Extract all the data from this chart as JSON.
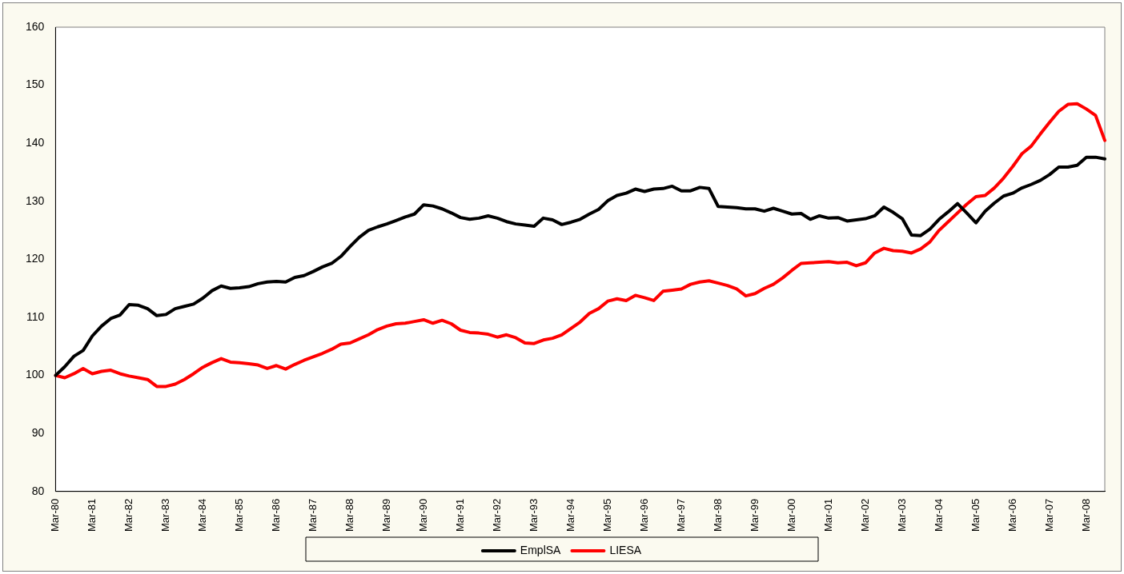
{
  "chart_data": {
    "type": "line",
    "categories": [
      "Mar-80",
      null,
      null,
      null,
      "Mar-81",
      null,
      null,
      null,
      "Mar-82",
      null,
      null,
      null,
      "Mar-83",
      null,
      null,
      null,
      "Mar-84",
      null,
      null,
      null,
      "Mar-85",
      null,
      null,
      null,
      "Mar-86",
      null,
      null,
      null,
      "Mar-87",
      null,
      null,
      null,
      "Mar-88",
      null,
      null,
      null,
      "Mar-89",
      null,
      null,
      null,
      "Mar-90",
      null,
      null,
      null,
      "Mar-91",
      null,
      null,
      null,
      "Mar-92",
      null,
      null,
      null,
      "Mar-93",
      null,
      null,
      null,
      "Mar-94",
      null,
      null,
      null,
      "Mar-95",
      null,
      null,
      null,
      "Mar-96",
      null,
      null,
      null,
      "Mar-97",
      null,
      null,
      null,
      "Mar-98",
      null,
      null,
      null,
      "Mar-99",
      null,
      null,
      null,
      "Mar-00",
      null,
      null,
      null,
      "Mar-01",
      null,
      null,
      null,
      "Mar-02",
      null,
      null,
      null,
      "Mar-03",
      null,
      null,
      null,
      "Mar-04",
      null,
      null,
      null,
      "Mar-05",
      null,
      null,
      null,
      "Mar-06",
      null,
      null,
      null,
      "Mar-07",
      null,
      null,
      null,
      "Mar-08",
      null,
      null
    ],
    "series": [
      {
        "name": "EmplSA",
        "color": "#000000",
        "values": [
          100,
          101.5,
          103.3,
          104.3,
          106.8,
          108.5,
          109.8,
          110.4,
          112.2,
          112.1,
          111.5,
          110.3,
          110.5,
          111.5,
          111.9,
          112.3,
          113.3,
          114.6,
          115.4,
          115,
          115.1,
          115.3,
          115.8,
          116.1,
          116.2,
          116.1,
          116.9,
          117.2,
          117.9,
          118.7,
          119.3,
          120.5,
          122.2,
          123.8,
          125,
          125.6,
          126.1,
          126.7,
          127.3,
          127.8,
          129.4,
          129.2,
          128.7,
          128,
          127.2,
          126.9,
          127.1,
          127.5,
          127.1,
          126.5,
          126.1,
          125.9,
          125.7,
          127.1,
          126.8,
          126,
          126.4,
          126.9,
          127.8,
          128.6,
          130.1,
          131,
          131.4,
          132.1,
          131.7,
          132.1,
          132.2,
          132.6,
          131.8,
          131.8,
          132.4,
          132.2,
          129.1,
          129,
          128.9,
          128.7,
          128.7,
          128.3,
          128.8,
          128.3,
          127.8,
          127.9,
          126.9,
          127.5,
          127.1,
          127.2,
          126.6,
          126.8,
          127,
          127.5,
          129,
          128.1,
          127,
          124.2,
          124.1,
          125.2,
          126.9,
          128.2,
          129.6,
          128,
          126.3,
          128.3,
          129.7,
          130.9,
          131.4,
          132.3,
          132.9,
          133.6,
          134.6,
          135.9,
          135.9,
          136.2,
          137.6,
          137.6,
          137.3
        ]
      },
      {
        "name": "LIESA",
        "color": "#ff0000",
        "values": [
          100,
          99.6,
          100.3,
          101.2,
          100.3,
          100.7,
          100.9,
          100.3,
          99.9,
          99.6,
          99.3,
          98.1,
          98.1,
          98.5,
          99.3,
          100.3,
          101.4,
          102.2,
          102.9,
          102.3,
          102.2,
          102,
          101.8,
          101.2,
          101.7,
          101.1,
          101.9,
          102.6,
          103.2,
          103.8,
          104.5,
          105.4,
          105.6,
          106.3,
          107,
          107.9,
          108.5,
          108.9,
          109,
          109.3,
          109.6,
          109,
          109.5,
          108.9,
          107.8,
          107.4,
          107.3,
          107.1,
          106.6,
          107,
          106.5,
          105.6,
          105.5,
          106.1,
          106.4,
          107,
          108.1,
          109.2,
          110.7,
          111.5,
          112.8,
          113.2,
          112.9,
          113.8,
          113.4,
          112.9,
          114.5,
          114.7,
          114.9,
          115.7,
          116.1,
          116.3,
          115.9,
          115.5,
          114.9,
          113.7,
          114.1,
          115,
          115.7,
          116.8,
          118.1,
          119.3,
          119.4,
          119.5,
          119.6,
          119.4,
          119.5,
          118.9,
          119.4,
          121.1,
          121.9,
          121.5,
          121.4,
          121.1,
          121.8,
          123,
          125,
          126.5,
          128,
          129.5,
          130.8,
          131,
          132.3,
          134,
          136,
          138.2,
          139.5,
          141.6,
          143.6,
          145.5,
          146.7,
          146.8,
          145.9,
          144.8,
          140.5
        ]
      }
    ],
    "ylim": [
      80,
      160
    ],
    "yticks": [
      80,
      90,
      100,
      110,
      120,
      130,
      140,
      150,
      160
    ],
    "legend": "bottom",
    "marker": "none"
  }
}
